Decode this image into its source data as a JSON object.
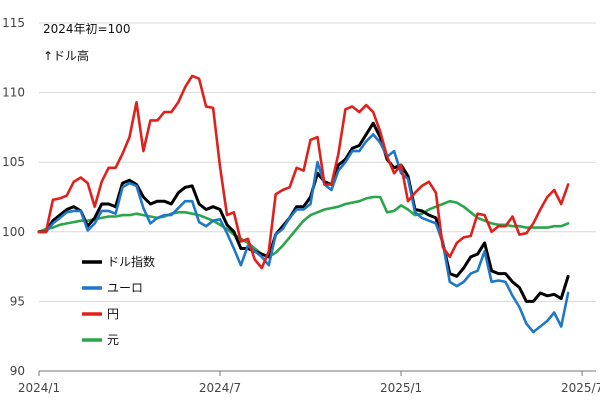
{
  "chart_data": {
    "type": "line",
    "annotation_base": "2024年初=100",
    "annotation_dir": "↑ドル高",
    "x_ticks": [
      "2024/1",
      "2024/7",
      "2025/1",
      "2025/7"
    ],
    "x_tick_values": [
      0,
      26,
      52,
      78
    ],
    "xlim": [
      0,
      80
    ],
    "ylim": [
      90,
      115
    ],
    "y_ticks": [
      90,
      95,
      100,
      105,
      110,
      115
    ],
    "grid": "horizontal",
    "legend_position": "left-bottom",
    "series": [
      {
        "name": "ドル指数",
        "color": "#000000",
        "values": [
          100,
          100,
          100.8,
          101.2,
          101.6,
          101.8,
          101.5,
          100.4,
          101,
          102,
          102,
          101.8,
          103.5,
          103.7,
          103.4,
          102.5,
          102,
          102.2,
          102.2,
          102,
          102.8,
          103.2,
          103.3,
          102,
          101.6,
          101.8,
          101.6,
          100.5,
          100,
          98.8,
          98.8,
          98.6,
          98.4,
          98.2,
          99.8,
          100.4,
          101,
          101.8,
          101.8,
          102.5,
          104.2,
          103.6,
          103.4,
          104.8,
          105.2,
          106,
          106.2,
          107,
          107.8,
          106.8,
          105.2,
          104.6,
          104.8,
          104,
          101.6,
          101.5,
          101.2,
          101,
          99.2,
          97,
          96.8,
          97.4,
          98.2,
          98.4,
          99.2,
          97.2,
          97,
          97,
          96.4,
          96,
          95,
          95,
          95.6,
          95.4,
          95.5,
          95.2,
          96.8
        ]
      },
      {
        "name": "ユーロ",
        "color": "#1f77c8",
        "values": [
          100,
          100,
          100.6,
          101,
          101.4,
          101.5,
          101.5,
          100.1,
          100.6,
          101.5,
          101.5,
          101.3,
          103.2,
          103.5,
          103.3,
          101.7,
          100.6,
          101,
          101.2,
          101.2,
          101.7,
          102.2,
          102.2,
          100.7,
          100.4,
          100.8,
          100.9,
          99.9,
          98.8,
          97.6,
          99,
          98.6,
          98.2,
          97.6,
          99.8,
          100.2,
          101,
          101.6,
          101.6,
          102,
          105,
          103.4,
          103,
          104.4,
          105,
          105.8,
          105.8,
          106.5,
          107,
          106.4,
          105.4,
          105.8,
          104.2,
          103.8,
          101.4,
          101,
          100.8,
          100.6,
          99.2,
          96.4,
          96.1,
          96.4,
          97,
          97.2,
          98.6,
          96.4,
          96.5,
          96.4,
          95.4,
          94.6,
          93.4,
          92.8,
          93.2,
          93.6,
          94.2,
          93.2,
          95.6
        ]
      },
      {
        "name": "円",
        "color": "#e0201b",
        "values": [
          100,
          100,
          102.3,
          102.4,
          102.6,
          103.6,
          103.9,
          103.5,
          101.8,
          103.6,
          104.6,
          104.6,
          105.6,
          106.8,
          109.3,
          105.8,
          108,
          108,
          108.6,
          108.6,
          109.3,
          110.4,
          111.2,
          111,
          109,
          108.9,
          104.7,
          101.2,
          101.4,
          99.3,
          99.5,
          98,
          97.4,
          98.6,
          102.7,
          103,
          103.2,
          104.6,
          104.4,
          106.6,
          106.8,
          103.4,
          103.4,
          105.6,
          108.8,
          109,
          108.6,
          109.1,
          108.6,
          107.2,
          105.4,
          104.2,
          104.8,
          102.2,
          102.8,
          103.3,
          103.6,
          102.8,
          98.9,
          98.2,
          99.2,
          99.6,
          99.7,
          101.3,
          101.2,
          100,
          100.4,
          100.4,
          101.1,
          99.8,
          99.9,
          100.6,
          101.6,
          102.5,
          103,
          102,
          103.4
        ]
      },
      {
        "name": "元",
        "color": "#2aa64a",
        "values": [
          100,
          100.2,
          100.3,
          100.5,
          100.6,
          100.7,
          100.8,
          100.8,
          100.9,
          101,
          101.1,
          101.1,
          101.2,
          101.2,
          101.3,
          101.2,
          101.1,
          101,
          101.1,
          101.3,
          101.4,
          101.4,
          101.3,
          101.2,
          101,
          100.8,
          100.5,
          100.2,
          99.8,
          99.5,
          99.2,
          98.8,
          98.4,
          98.2,
          98.5,
          99,
          99.6,
          100.2,
          100.8,
          101.2,
          101.4,
          101.6,
          101.7,
          101.8,
          102,
          102.1,
          102.2,
          102.4,
          102.5,
          102.5,
          101.4,
          101.5,
          101.9,
          101.6,
          101.2,
          101.3,
          101.6,
          101.8,
          102,
          102.2,
          102.1,
          101.8,
          101.4,
          101,
          100.8,
          100.6,
          100.5,
          100.5,
          100.4,
          100.4,
          100.3,
          100.3,
          100.3,
          100.3,
          100.4,
          100.4,
          100.6
        ]
      }
    ]
  }
}
